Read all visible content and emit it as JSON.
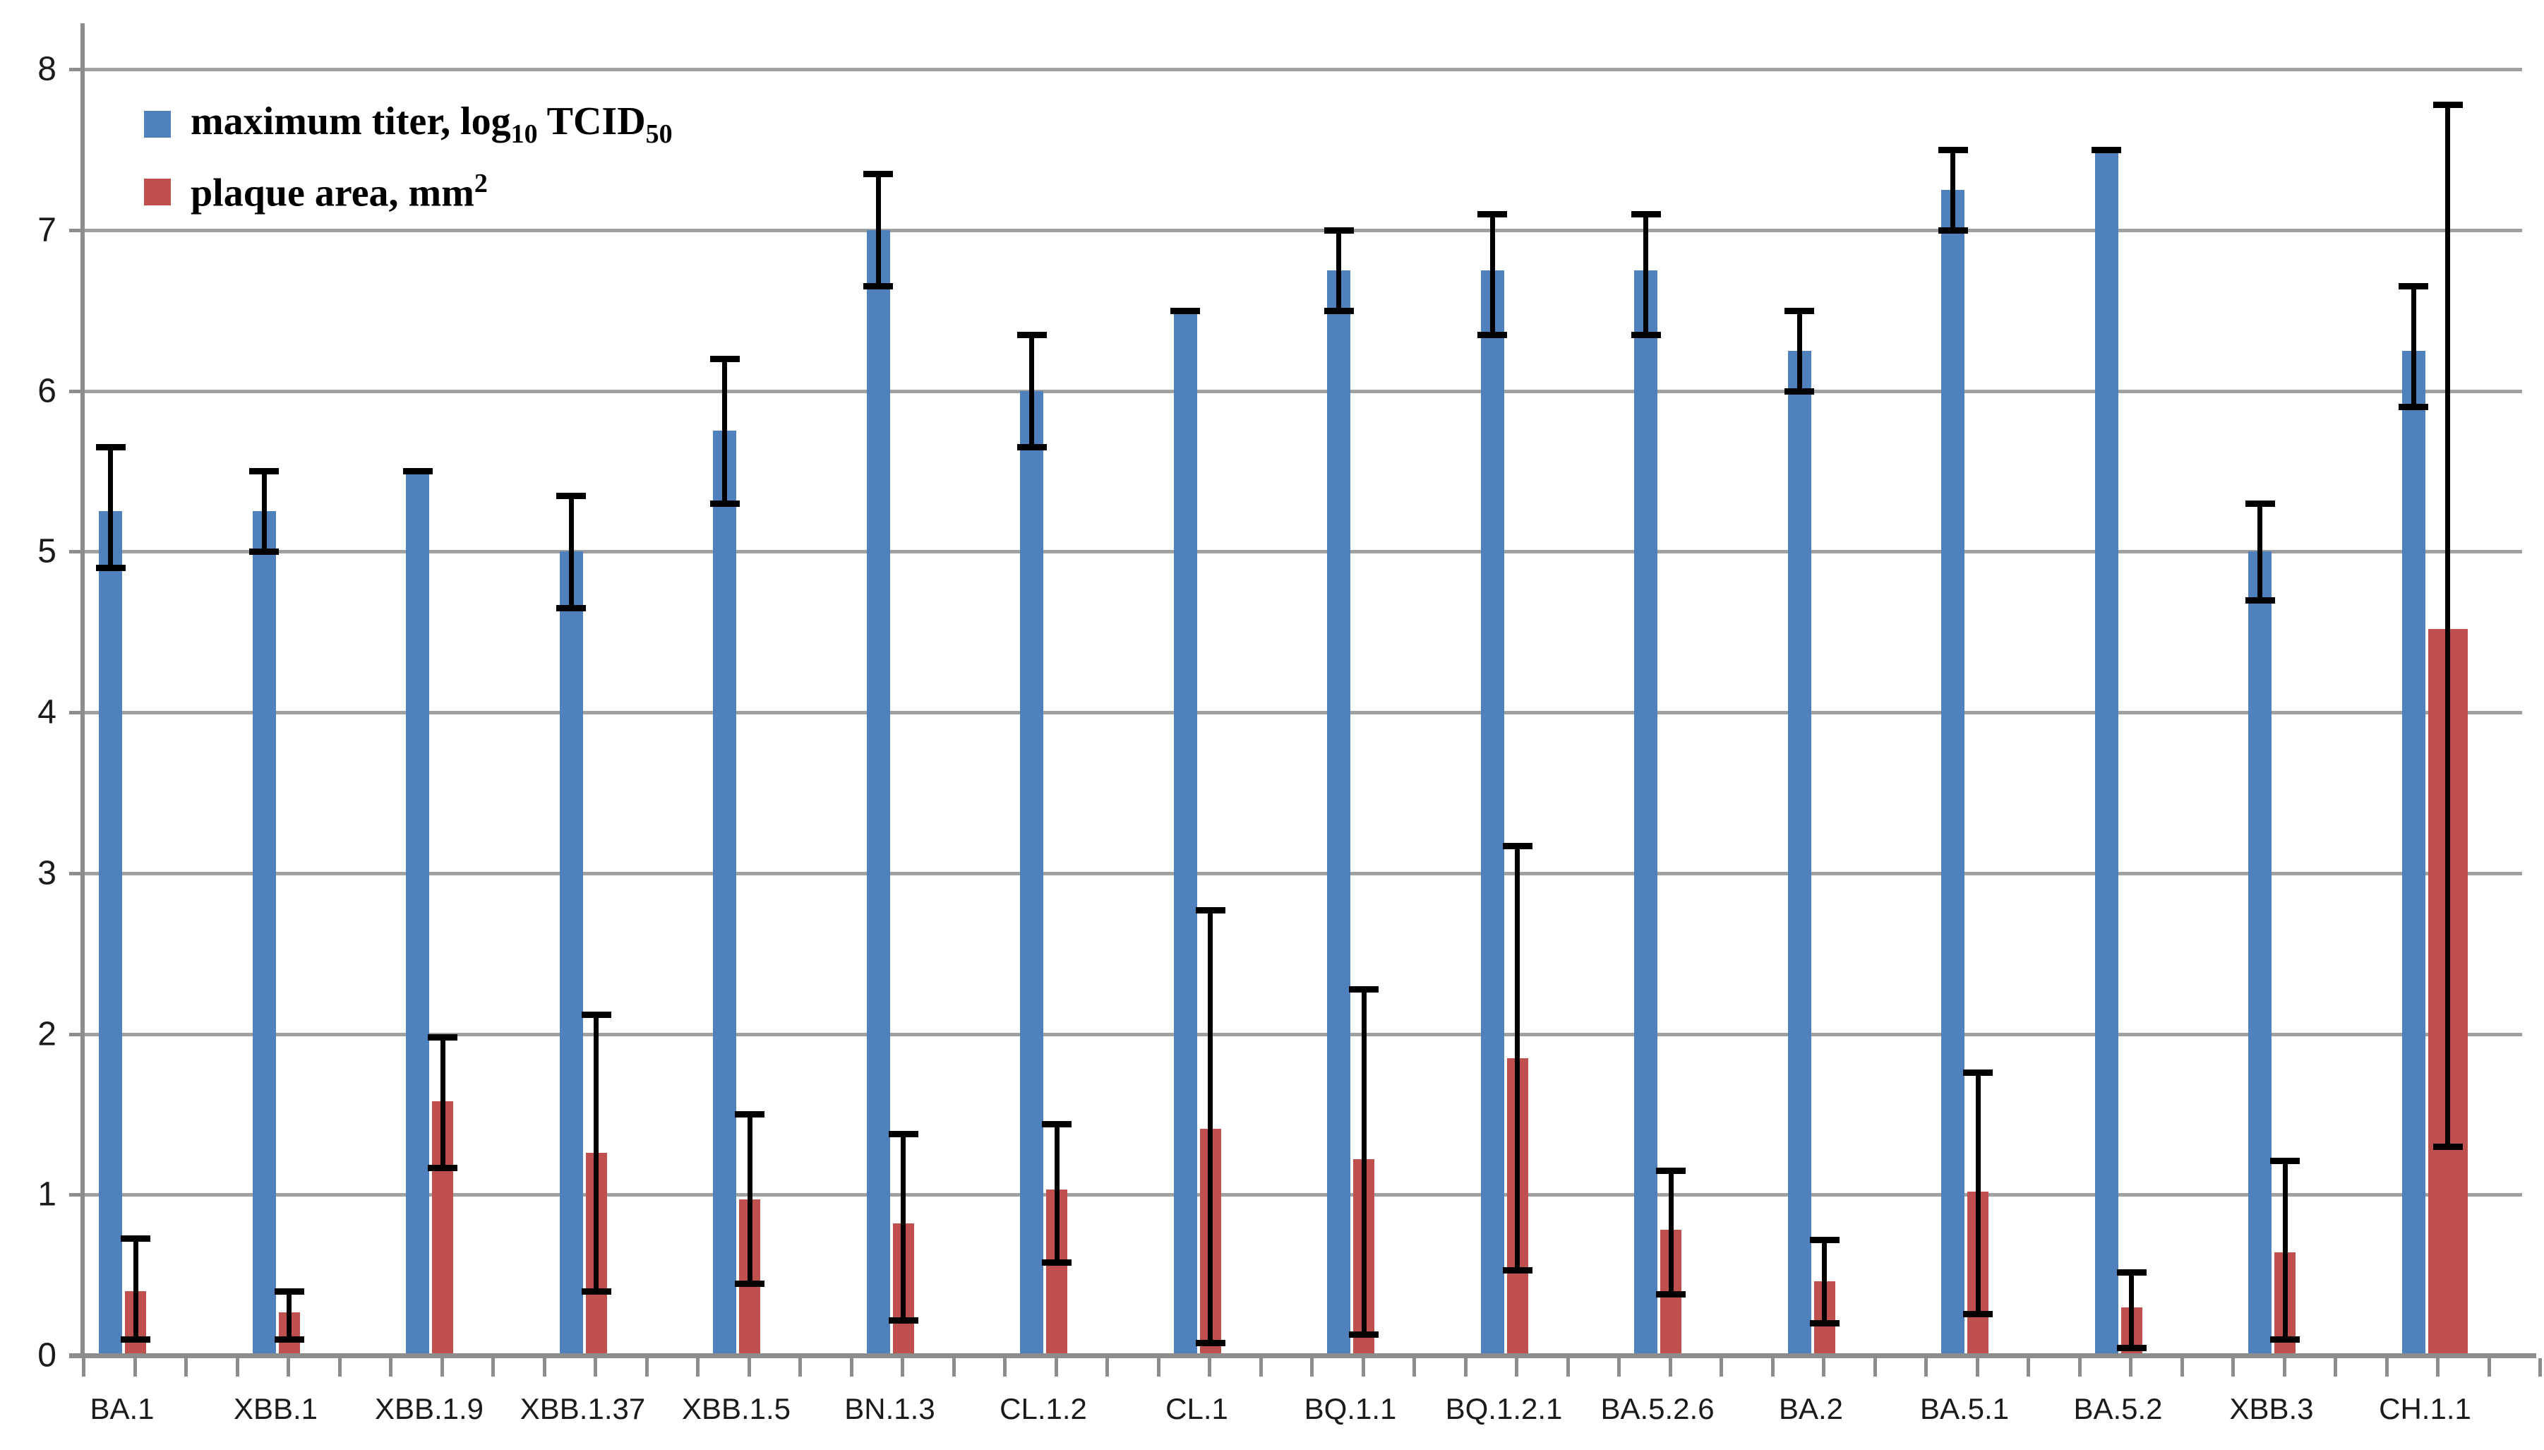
{
  "chart_data": {
    "type": "bar",
    "title": "",
    "xlabel": "",
    "ylabel": "",
    "ylim": [
      0,
      8
    ],
    "yticks": [
      0,
      1,
      2,
      3,
      4,
      5,
      6,
      7,
      8
    ],
    "grid": true,
    "legend_position": "top-left",
    "error_bars": true,
    "categories": [
      "BA.1",
      "XBB.1",
      "XBB.1.9",
      "XBB.1.37",
      "XBB.1.5",
      "BN.1.3",
      "CL.1.2",
      "CL.1",
      "BQ.1.1",
      "BQ.1.2.1",
      "BA.5.2.6",
      "BA.2",
      "BA.5.1",
      "BA.5.2",
      "XBB.3",
      "CH.1.1"
    ],
    "series": [
      {
        "name": "maximum titer, log10 TCID50",
        "color": "#4F81BD",
        "values": [
          5.25,
          5.25,
          5.5,
          5.0,
          5.75,
          7.0,
          6.0,
          6.5,
          6.75,
          6.75,
          6.75,
          6.25,
          7.25,
          7.5,
          5.0,
          6.25
        ],
        "error_low": [
          4.9,
          5.0,
          5.5,
          4.65,
          5.3,
          6.65,
          5.65,
          6.5,
          6.5,
          6.35,
          6.35,
          6.0,
          7.0,
          7.5,
          4.7,
          5.9
        ],
        "error_high": [
          5.65,
          5.5,
          5.5,
          5.35,
          6.2,
          7.35,
          6.35,
          6.5,
          7.0,
          7.1,
          7.1,
          6.5,
          7.5,
          7.5,
          5.3,
          6.65
        ]
      },
      {
        "name": "plaque area, mm2",
        "color": "#C0504D",
        "values": [
          0.4,
          0.27,
          1.58,
          1.26,
          0.97,
          0.82,
          1.03,
          1.41,
          1.22,
          1.85,
          0.78,
          0.46,
          1.02,
          0.3,
          0.64,
          4.52
        ],
        "error_low": [
          0.1,
          0.1,
          1.17,
          0.4,
          0.45,
          0.22,
          0.58,
          0.08,
          0.13,
          0.53,
          0.38,
          0.2,
          0.26,
          0.05,
          0.1,
          1.3
        ],
        "error_high": [
          0.73,
          0.4,
          1.98,
          2.12,
          1.5,
          1.38,
          1.44,
          2.77,
          2.28,
          3.17,
          1.15,
          0.72,
          1.76,
          0.52,
          1.21,
          7.78
        ]
      }
    ],
    "legend_rich": [
      {
        "swatch_color": "#4F81BD",
        "parts": [
          {
            "t": "maximum titer, log"
          },
          {
            "t": "10",
            "sub": true
          },
          {
            "t": " TCID"
          },
          {
            "t": "50",
            "sub": true
          }
        ]
      },
      {
        "swatch_color": "#C0504D",
        "parts": [
          {
            "t": " plaque area, mm"
          },
          {
            "t": "2",
            "sup": true
          }
        ]
      }
    ]
  },
  "axis_colors": {
    "gridline": "#a0a0a0",
    "axis": "#8c8c8c",
    "label": "#1a1a1a"
  }
}
